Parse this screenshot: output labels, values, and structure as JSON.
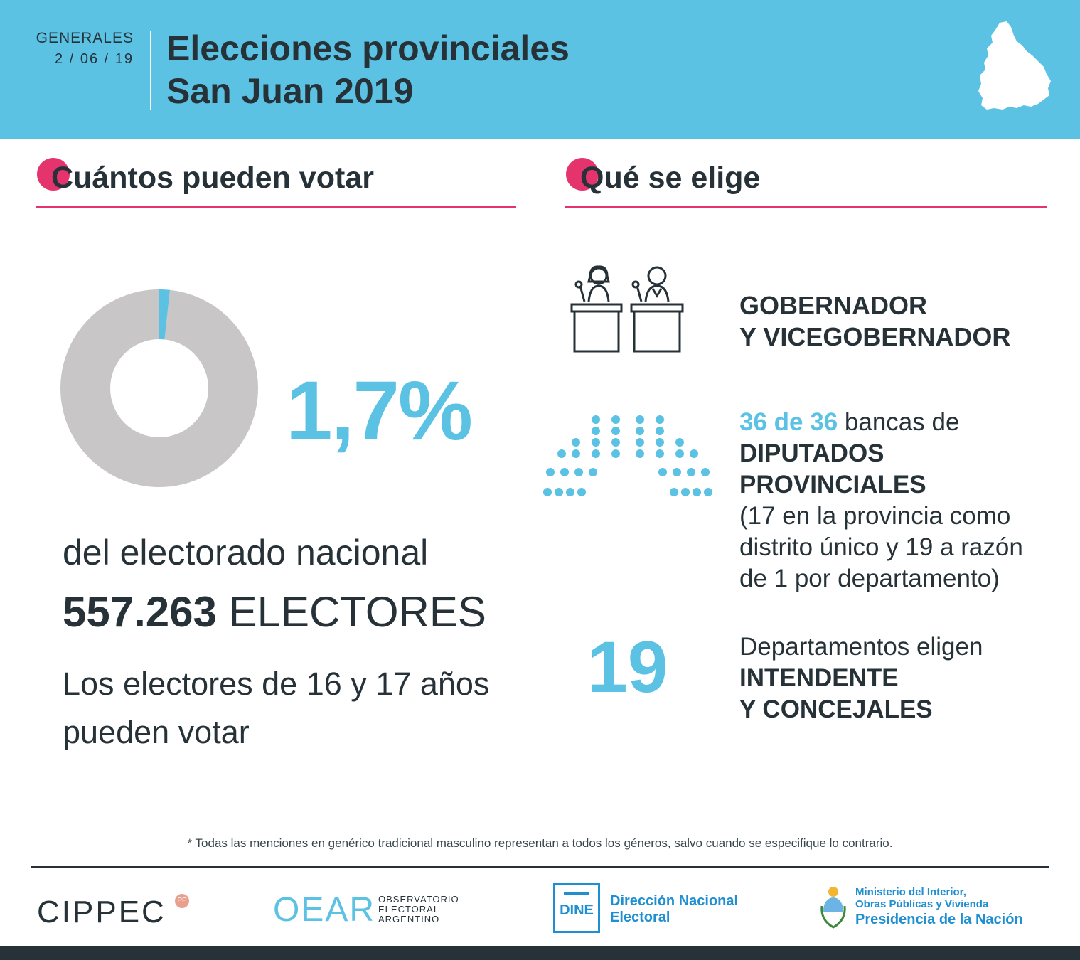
{
  "header": {
    "date_label": "GENERALES",
    "date_value": "2 / 06 / 19",
    "title_line1": "Elecciones provinciales",
    "title_line2": "San Juan 2019",
    "color": "#5bc2e4"
  },
  "left": {
    "heading": "Cuántos pueden votar",
    "donut_share_percent": 1.7,
    "percent_text": "1,7%",
    "electorate_text": "del electorado nacional",
    "electors_number": "557.263",
    "electors_label": "ELECTORES",
    "youth_text": "Los electores de 16 y 17 años pueden votar"
  },
  "right": {
    "heading": "Qué se elige",
    "gov_line1": "GOBERNADOR",
    "gov_line2": "Y VICEGOBERNADOR",
    "seats_count": "36 de 36",
    "seats_text": "bancas de",
    "dip_line1": "DIPUTADOS",
    "dip_line2": "PROVINCIALES",
    "dip_note1": "(17 en la provincia como",
    "dip_note2": "distrito único y 19 a razón",
    "dip_note3": "de 1 por departamento)",
    "dept_count": "19",
    "dept_text": "Departamentos eligen",
    "dept_line1": "INTENDENTE",
    "dept_line2": "Y CONCEJALES"
  },
  "footer": {
    "footnote": "* Todas las menciones en genérico tradicional masculino representan a todos los géneros, salvo cuando se especifique lo contrario.",
    "cippec": "CIPPEC",
    "cippec_badge": "PP",
    "oear": "OEAR",
    "oear_sub1": "OBSERVATORIO",
    "oear_sub2": "ELECTORAL",
    "oear_sub3": "ARGENTINO",
    "dine": "DINE",
    "dine_line1": "Dirección Nacional",
    "dine_line2": "Electoral",
    "min_line1": "Ministerio del Interior,",
    "min_line2": "Obras Públicas y Vivienda",
    "min_line3": "Presidencia de la Nación"
  },
  "colors": {
    "accent": "#5bc2e4",
    "pink": "#e5336e",
    "dark": "#263238",
    "gray": "#c8c6c6",
    "govblue": "#1f8fd1"
  }
}
